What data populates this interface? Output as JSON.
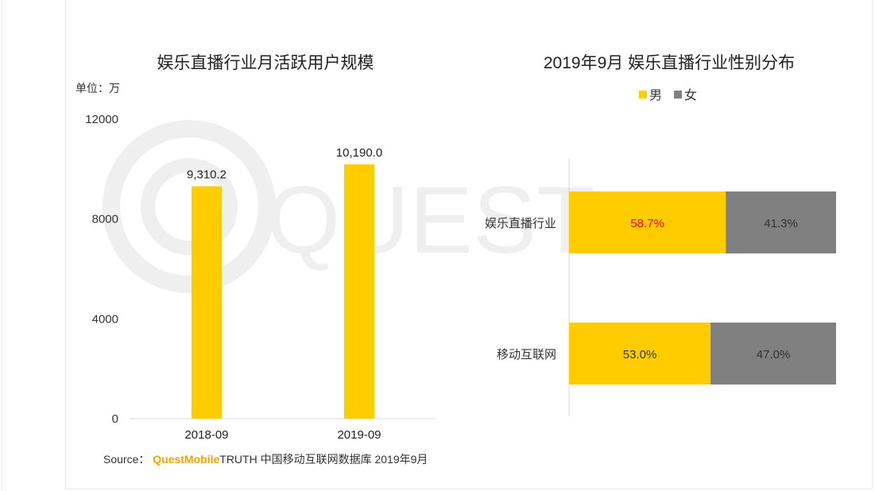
{
  "colors": {
    "male": "#FFCC00",
    "female": "#808080",
    "bar": "#FFCC00",
    "highlight": "#FF0000",
    "brand": "#F5A300"
  },
  "watermark": "QUEST",
  "source": {
    "prefix": "Source：",
    "brand": "QuestMobile",
    "suffix": "TRUTH 中国移动互联网数据库 2019年9月"
  },
  "chart_data": [
    {
      "type": "bar",
      "title": "娱乐直播行业月活跃用户规模",
      "unit_label": "单位：万",
      "categories": [
        "2018-09",
        "2019-09"
      ],
      "values": [
        9310.2,
        10190.0
      ],
      "value_labels": [
        "9,310.2",
        "10,190.0"
      ],
      "ylim": [
        0,
        12000
      ],
      "yticks": [
        0,
        4000,
        8000,
        12000
      ],
      "grid": false
    },
    {
      "type": "bar",
      "orientation": "horizontal",
      "stacked": true,
      "title": "2019年9月 娱乐直播行业性别分布",
      "categories": [
        "娱乐直播行业",
        "移动互联网"
      ],
      "legend_position": "top",
      "series": [
        {
          "name": "男",
          "values": [
            58.7,
            53.0
          ],
          "labels": [
            "58.7%",
            "53.0%"
          ]
        },
        {
          "name": "女",
          "values": [
            41.3,
            47.0
          ],
          "labels": [
            "41.3%",
            "47.0%"
          ]
        }
      ],
      "xlim": [
        0,
        100
      ]
    }
  ]
}
